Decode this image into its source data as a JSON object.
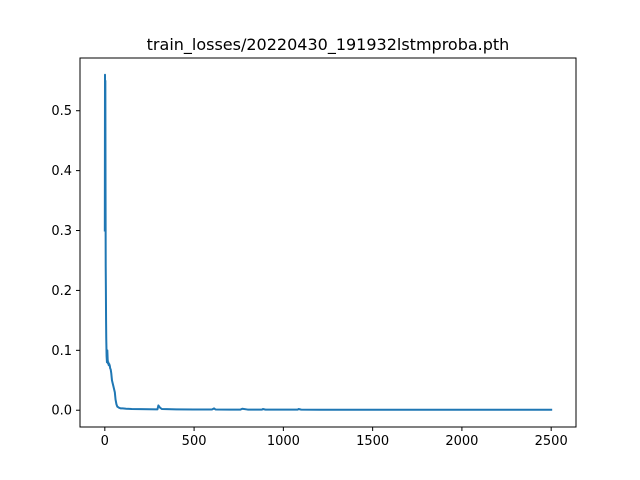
{
  "chart_data": {
    "type": "line",
    "title": "train_losses/20220430_191932lstmproba.pth",
    "xlabel": "",
    "ylabel": "",
    "xlim": [
      -139,
      2639
    ],
    "ylim": [
      -0.028,
      0.588
    ],
    "xticks": [
      0,
      500,
      1000,
      1500,
      2000,
      2500
    ],
    "xtick_labels": [
      "0",
      "500",
      "1000",
      "1500",
      "2000",
      "2500"
    ],
    "yticks": [
      0.0,
      0.1,
      0.2,
      0.3,
      0.4,
      0.5
    ],
    "ytick_labels": [
      "0.0",
      "0.1",
      "0.2",
      "0.3",
      "0.4",
      "0.5"
    ],
    "grid": false,
    "legend": "none",
    "series": [
      {
        "color": "#1f77b4",
        "x": [
          0,
          1,
          2,
          3,
          4,
          5,
          6,
          7,
          8,
          10,
          12,
          14,
          16,
          18,
          20,
          22,
          25,
          28,
          30,
          33,
          36,
          40,
          44,
          48,
          52,
          56,
          60,
          65,
          70,
          75,
          80,
          90,
          100,
          120,
          150,
          200,
          250,
          295,
          300,
          310,
          320,
          400,
          500,
          600,
          612,
          620,
          700,
          760,
          770,
          800,
          880,
          885,
          900,
          1000,
          1080,
          1085,
          1100,
          1200,
          1300,
          1400,
          1500,
          1600,
          1700,
          1800,
          1900,
          2000,
          2100,
          2200,
          2300,
          2400,
          2500
        ],
        "y": [
          0.3,
          0.56,
          0.43,
          0.55,
          0.37,
          0.24,
          0.2,
          0.15,
          0.12,
          0.09,
          0.08,
          0.1,
          0.085,
          0.078,
          0.08,
          0.075,
          0.077,
          0.074,
          0.07,
          0.068,
          0.062,
          0.05,
          0.045,
          0.04,
          0.035,
          0.03,
          0.018,
          0.01,
          0.006,
          0.005,
          0.004,
          0.003,
          0.003,
          0.0025,
          0.002,
          0.0018,
          0.0016,
          0.0015,
          0.008,
          0.004,
          0.002,
          0.0015,
          0.0013,
          0.0012,
          0.003,
          0.0012,
          0.0011,
          0.0011,
          0.0025,
          0.0011,
          0.001,
          0.002,
          0.001,
          0.001,
          0.001,
          0.002,
          0.001,
          0.0009,
          0.0009,
          0.0009,
          0.0009,
          0.0009,
          0.0009,
          0.0009,
          0.0009,
          0.0009,
          0.0009,
          0.0008,
          0.0008,
          0.0008,
          0.0008
        ]
      }
    ]
  }
}
